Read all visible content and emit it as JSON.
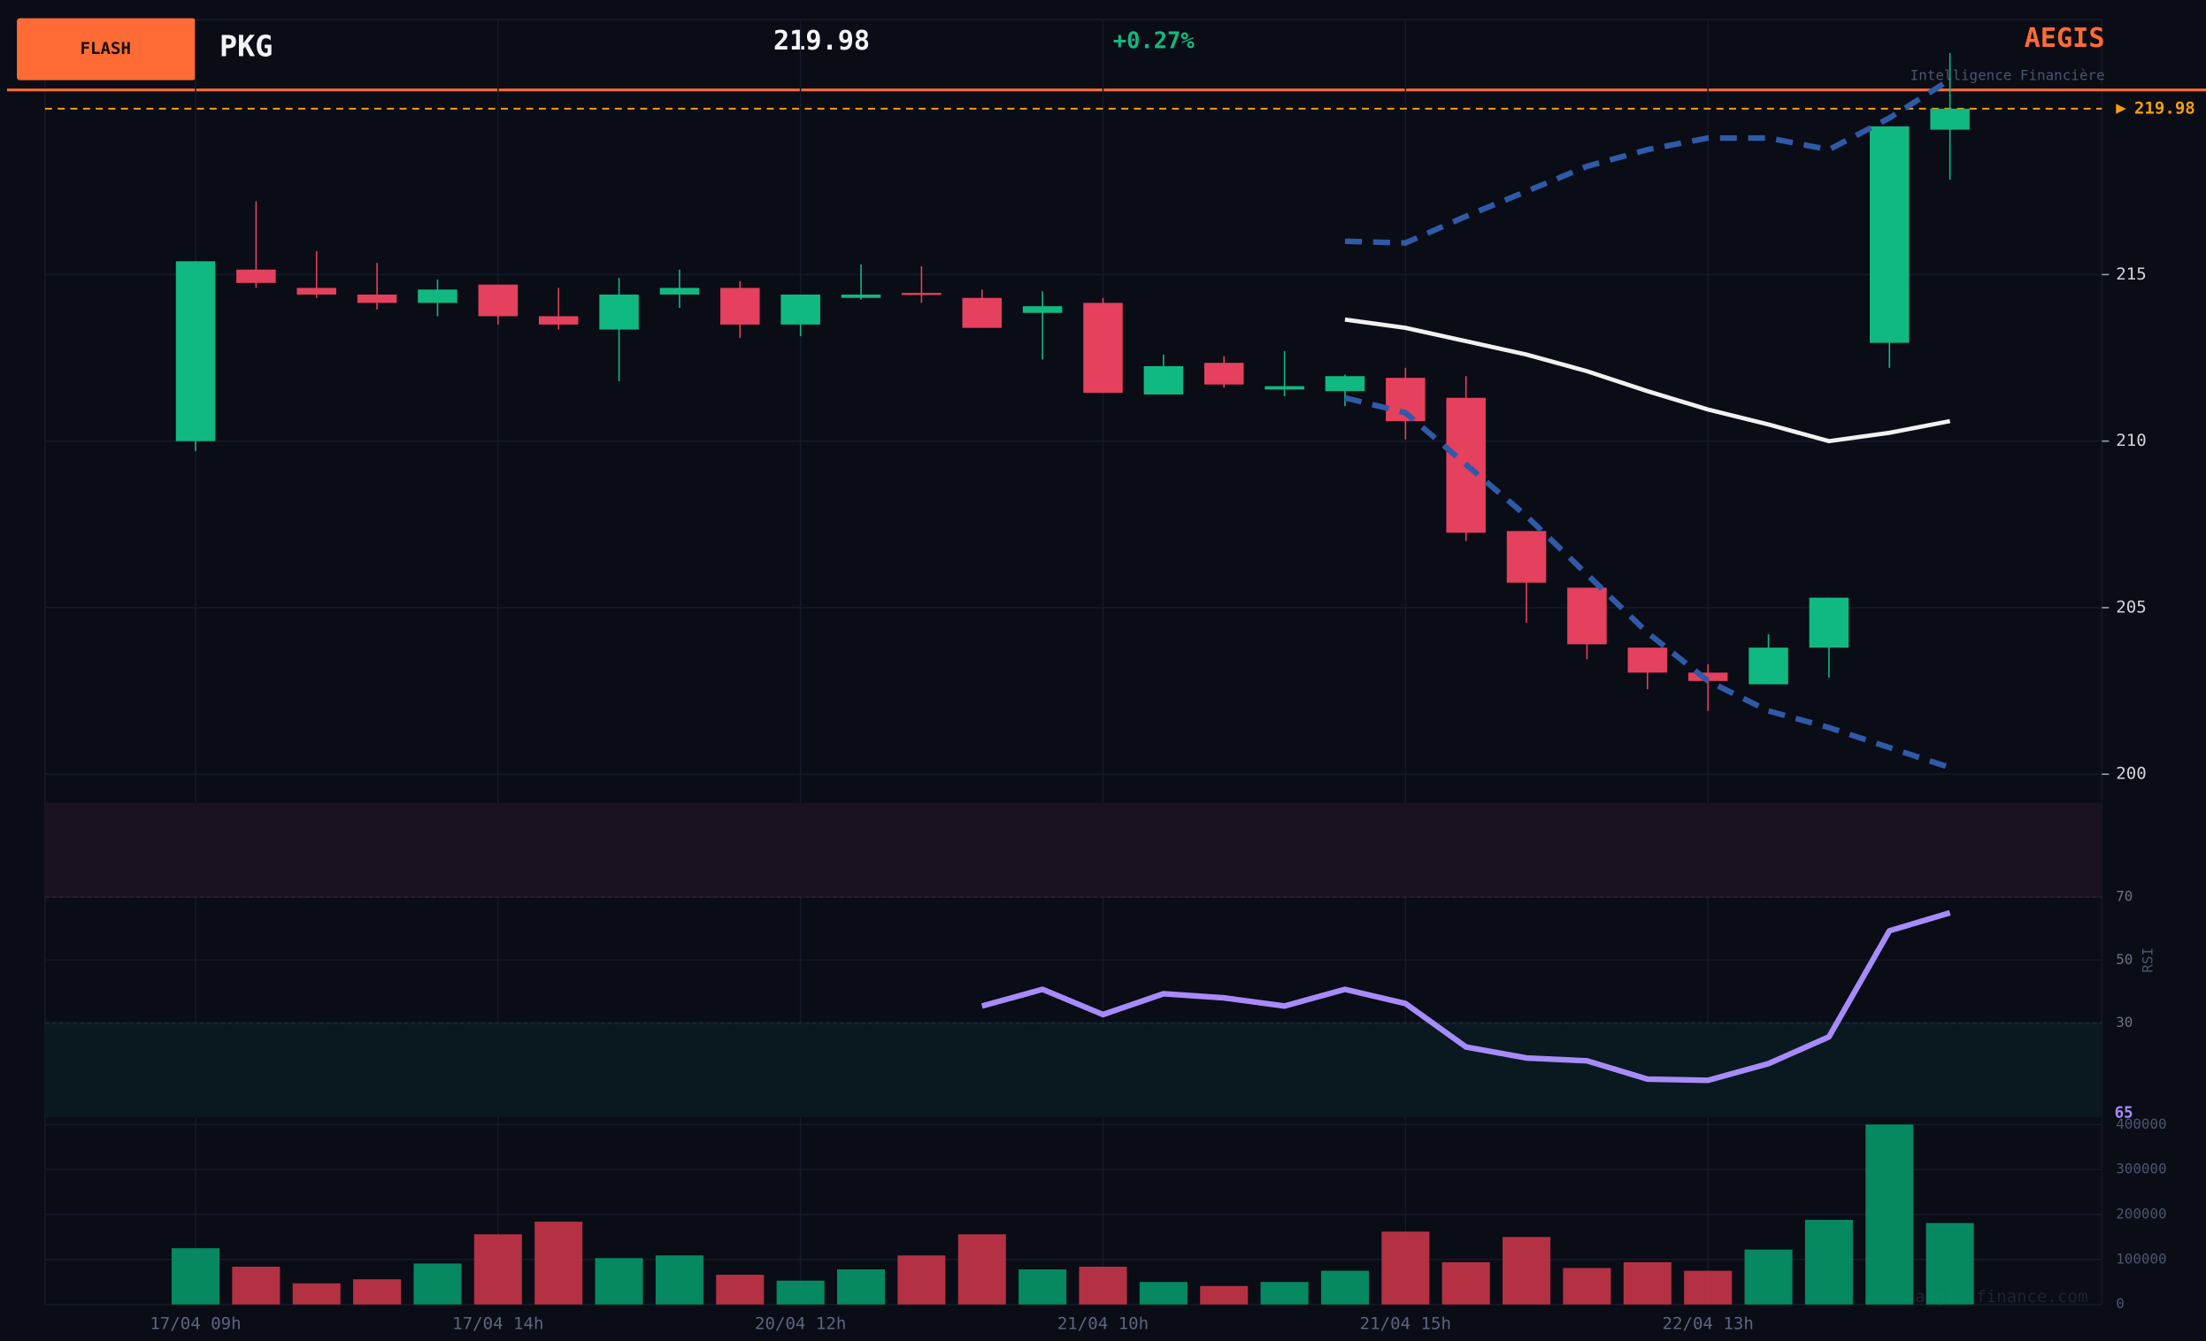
{
  "header": {
    "badge": "FLASH",
    "ticker": "PKG",
    "change": "+0.27%",
    "brand": "AEGIS",
    "tagline": "Intelligence Financière"
  },
  "footer": {
    "watermark": "aegis-finance.com"
  },
  "chart_data": [
    {
      "type": "candlestick",
      "categories": [
        "17/04 09h",
        null,
        null,
        null,
        null,
        "17/04 14h",
        null,
        null,
        null,
        null,
        "20/04 12h",
        null,
        null,
        null,
        null,
        "21/04 10h",
        null,
        null,
        null,
        null,
        "21/04 15h",
        null,
        null,
        null,
        null,
        "22/04 13h",
        null,
        null,
        null,
        null
      ],
      "open": [
        210.0,
        215.15,
        214.6,
        214.4,
        214.15,
        214.7,
        213.75,
        213.35,
        214.4,
        214.6,
        213.5,
        214.3,
        214.45,
        214.3,
        213.85,
        214.15,
        211.4,
        212.35,
        211.55,
        211.5,
        211.9,
        211.3,
        207.3,
        205.6,
        203.8,
        203.05,
        202.7,
        203.8,
        212.95,
        219.35
      ],
      "high": [
        215.4,
        217.2,
        215.7,
        215.35,
        214.85,
        214.7,
        214.6,
        214.9,
        215.15,
        214.8,
        214.4,
        215.3,
        215.25,
        214.55,
        214.5,
        214.3,
        212.6,
        212.55,
        212.7,
        212.0,
        212.2,
        211.95,
        207.3,
        205.6,
        203.8,
        203.3,
        204.2,
        205.3,
        219.45,
        221.65
      ],
      "low": [
        209.7,
        214.6,
        214.3,
        213.95,
        213.75,
        213.5,
        213.35,
        211.8,
        214.0,
        213.1,
        213.15,
        214.25,
        214.15,
        213.4,
        212.45,
        211.45,
        211.4,
        211.6,
        211.35,
        211.05,
        210.05,
        207.0,
        204.55,
        203.45,
        202.55,
        201.9,
        202.7,
        202.9,
        212.2,
        217.85
      ],
      "close": [
        215.4,
        214.75,
        214.4,
        214.15,
        214.55,
        213.75,
        213.5,
        214.4,
        214.6,
        213.5,
        214.4,
        214.4,
        214.4,
        213.4,
        214.05,
        211.45,
        212.25,
        211.7,
        211.65,
        211.95,
        210.6,
        207.25,
        205.75,
        203.9,
        203.05,
        202.8,
        203.8,
        205.3,
        219.45,
        219.98
      ],
      "up_color": "#10b981",
      "down_color": "#e5405e",
      "series": [
        {
          "color": "#2f5aa8",
          "dashed": true,
          "values": [
            null,
            null,
            null,
            null,
            null,
            null,
            null,
            null,
            null,
            null,
            null,
            null,
            null,
            null,
            null,
            null,
            null,
            null,
            null,
            216.0,
            215.95,
            216.75,
            217.5,
            218.25,
            218.75,
            219.1,
            219.1,
            218.75,
            219.7,
            220.85
          ]
        },
        {
          "color": "#f1f1f1",
          "dashed": false,
          "values": [
            null,
            null,
            null,
            null,
            null,
            null,
            null,
            null,
            null,
            null,
            null,
            null,
            null,
            null,
            null,
            null,
            null,
            null,
            null,
            213.65,
            213.4,
            213.0,
            212.6,
            212.1,
            211.5,
            210.95,
            210.5,
            210.0,
            210.25,
            210.6
          ]
        },
        {
          "color": "#2f5aa8",
          "dashed": true,
          "values": [
            null,
            null,
            null,
            null,
            null,
            null,
            null,
            null,
            null,
            null,
            null,
            null,
            null,
            null,
            null,
            null,
            null,
            null,
            null,
            211.3,
            210.85,
            209.3,
            207.75,
            206.0,
            204.25,
            202.8,
            201.9,
            201.4,
            200.8,
            200.2
          ]
        }
      ],
      "last_price": 219.98,
      "last_price_color": "#f59e0b",
      "ylim": [
        199.4,
        220.5
      ],
      "yticks": [
        200,
        205,
        210,
        215
      ],
      "grid": true
    },
    {
      "type": "line",
      "ylabel": "RSI",
      "color": "#a78bfa",
      "values": [
        null,
        null,
        null,
        null,
        null,
        null,
        null,
        null,
        null,
        null,
        null,
        null,
        null,
        35.4,
        40.7,
        32.7,
        39.3,
        38.0,
        35.4,
        40.7,
        36.2,
        22.4,
        18.9,
        18.0,
        12.2,
        11.8,
        17.1,
        25.6,
        59.3,
        65
      ],
      "ylim": [
        0,
        100
      ],
      "yticks": [
        30,
        50,
        70
      ],
      "overbought": 70,
      "oversold": 30
    },
    {
      "type": "bar",
      "values": [
        125000,
        84000,
        47000,
        56000,
        91000,
        156000,
        184000,
        103000,
        109000,
        66000,
        53000,
        78000,
        109000,
        156000,
        78000,
        84000,
        50000,
        41000,
        50000,
        75000,
        162000,
        94000,
        150000,
        81000,
        94000,
        75000,
        122000,
        188000,
        400000,
        181000
      ],
      "up_color": "#059669",
      "down_color": "#c53548",
      "ylim": [
        0,
        400000
      ],
      "yticks": [
        0,
        100000,
        200000,
        300000,
        400000
      ],
      "grid": true
    }
  ]
}
